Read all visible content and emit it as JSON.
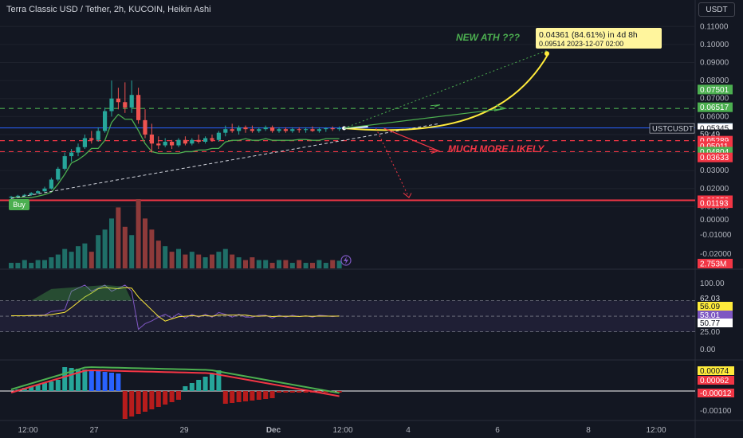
{
  "header": {
    "title": "Terra Classic USD / Tether, 2h, KUCOIN, Heikin Ashi",
    "currency_button": "USDT"
  },
  "colors": {
    "background": "#131722",
    "up": "#26a69a",
    "down": "#ef5350",
    "support_line": "#4caf50",
    "annotation_yellow": "#ffeb3b",
    "annotation_green": "#4caf50",
    "annotation_red": "#f23645",
    "rsi": "#7e57c2"
  },
  "main_pane": {
    "price_scale": [
      "0.11000",
      "0.10000",
      "0.09000",
      "0.08000",
      "0.07000",
      "0.06000",
      "0.05000",
      "0.04000",
      "0.03000",
      "0.02000",
      "0.01000"
    ],
    "price_badges": [
      {
        "value": "0.07501",
        "price": 0.07501,
        "color": "#4caf50",
        "text_color": "#ffffff"
      },
      {
        "value": "0.06517",
        "price": 0.06517,
        "color": "#4caf50",
        "text_color": "#ffffff"
      },
      {
        "value": "0.05378",
        "price": 0.05378,
        "color": "#26a69a",
        "text_color": "#ffffff"
      },
      {
        "value": "0.05360",
        "price": 0.0536,
        "color": "#f23645",
        "text_color": "#ffffff"
      },
      {
        "value": "0.05350",
        "price": 0.0535,
        "color": "#2962ff",
        "text_color": "#ffffff"
      },
      {
        "value": "0.05345",
        "price": 0.05345,
        "color": "#ffffff",
        "text_color": "#131722"
      },
      {
        "value": "59:49",
        "price": 0.0502,
        "color": "#131722",
        "text_color": "#d1d4dc"
      },
      {
        "value": "0.05289",
        "price": 0.0466,
        "color": "#f23645",
        "text_color": "#ffffff"
      },
      {
        "value": "0.05011",
        "price": 0.0436,
        "color": "#f23645",
        "text_color": "#ffffff"
      },
      {
        "value": "0.04804",
        "price": 0.0405,
        "color": "#4caf50",
        "text_color": "#ffffff"
      },
      {
        "value": "0.03633",
        "price": 0.0373,
        "color": "#f23645",
        "text_color": "#ffffff"
      },
      {
        "value": "0.01350",
        "price": 0.0135,
        "color": "#f23645",
        "text_color": "#ffffff"
      },
      {
        "value": "0.01193",
        "price": 0.0119,
        "color": "#f23645",
        "text_color": "#ffffff"
      }
    ],
    "symbol_label": "USTCUSDT",
    "buy_label": "Buy",
    "ath_label": "NEW ATH ???",
    "likely_label": "MUCH MORE LIKELY",
    "measure_box": {
      "line1": "0.04361 (84.61%) in 4d 8h",
      "line2": "0.09514     2023-12-07  02:00"
    }
  },
  "volume_pane": {
    "scale": [
      "0.00000",
      "-0.01000",
      "-0.02000"
    ],
    "badge": "2.753M"
  },
  "rsi_pane": {
    "scale": [
      "100.00",
      "25.00",
      "0.00"
    ],
    "badges": [
      {
        "value": "62.03",
        "color": "#131722",
        "text_color": "#d1d4dc"
      },
      {
        "value": "56.09",
        "color": "#ffeb3b",
        "text_color": "#131722"
      },
      {
        "value": "53.01",
        "color": "#7e57c2",
        "text_color": "#ffffff"
      },
      {
        "value": "50.77",
        "color": "#ffffff",
        "text_color": "#131722"
      }
    ]
  },
  "macd_pane": {
    "badges": [
      {
        "value": "0.00074",
        "color": "#ffeb3b",
        "text_color": "#131722"
      },
      {
        "value": "0.00062",
        "color": "#f23645",
        "text_color": "#ffffff"
      },
      {
        "value": "-0.00012",
        "color": "#f23645",
        "text_color": "#ffffff"
      }
    ],
    "scale": [
      "-0.00100"
    ]
  },
  "time_axis": [
    "12:00",
    "27",
    "29",
    "Dec",
    "12:00",
    "4",
    "6",
    "8",
    "12:00"
  ],
  "chart_data": {
    "type": "candlestick",
    "price_range": [
      0.0,
      0.115
    ],
    "ohlc": [
      [
        0.015,
        0.016,
        0.014,
        0.0155
      ],
      [
        0.0155,
        0.0165,
        0.015,
        0.016
      ],
      [
        0.016,
        0.017,
        0.0155,
        0.0165
      ],
      [
        0.0165,
        0.018,
        0.016,
        0.0175
      ],
      [
        0.0175,
        0.019,
        0.017,
        0.0185
      ],
      [
        0.0185,
        0.021,
        0.018,
        0.02
      ],
      [
        0.02,
        0.026,
        0.0195,
        0.025
      ],
      [
        0.025,
        0.032,
        0.024,
        0.031
      ],
      [
        0.031,
        0.04,
        0.03,
        0.038
      ],
      [
        0.038,
        0.042,
        0.035,
        0.04
      ],
      [
        0.04,
        0.045,
        0.038,
        0.043
      ],
      [
        0.043,
        0.05,
        0.042,
        0.048
      ],
      [
        0.048,
        0.052,
        0.045,
        0.047
      ],
      [
        0.047,
        0.054,
        0.046,
        0.052
      ],
      [
        0.052,
        0.065,
        0.051,
        0.063
      ],
      [
        0.063,
        0.08,
        0.06,
        0.07
      ],
      [
        0.07,
        0.076,
        0.064,
        0.068
      ],
      [
        0.068,
        0.079,
        0.062,
        0.065
      ],
      [
        0.065,
        0.08,
        0.062,
        0.072
      ],
      [
        0.072,
        0.076,
        0.056,
        0.058
      ],
      [
        0.058,
        0.064,
        0.048,
        0.05
      ],
      [
        0.05,
        0.056,
        0.04,
        0.045
      ],
      [
        0.045,
        0.049,
        0.042,
        0.044
      ],
      [
        0.044,
        0.048,
        0.043,
        0.046
      ],
      [
        0.046,
        0.047,
        0.042,
        0.044
      ],
      [
        0.044,
        0.048,
        0.043,
        0.047
      ],
      [
        0.047,
        0.049,
        0.044,
        0.045
      ],
      [
        0.045,
        0.048,
        0.044,
        0.047
      ],
      [
        0.047,
        0.05,
        0.045,
        0.046
      ],
      [
        0.046,
        0.049,
        0.045,
        0.048
      ],
      [
        0.048,
        0.05,
        0.046,
        0.047
      ],
      [
        0.047,
        0.052,
        0.046,
        0.051
      ],
      [
        0.051,
        0.055,
        0.049,
        0.053
      ],
      [
        0.053,
        0.056,
        0.051,
        0.052
      ],
      [
        0.052,
        0.055,
        0.05,
        0.054
      ],
      [
        0.054,
        0.055,
        0.051,
        0.053
      ],
      [
        0.053,
        0.055,
        0.051,
        0.052
      ],
      [
        0.052,
        0.054,
        0.051,
        0.053
      ],
      [
        0.053,
        0.055,
        0.052,
        0.054
      ],
      [
        0.054,
        0.055,
        0.051,
        0.052
      ],
      [
        0.052,
        0.054,
        0.051,
        0.053
      ],
      [
        0.053,
        0.054,
        0.051,
        0.052
      ],
      [
        0.052,
        0.054,
        0.051,
        0.053
      ],
      [
        0.053,
        0.054,
        0.051,
        0.0525
      ],
      [
        0.0525,
        0.054,
        0.051,
        0.053
      ],
      [
        0.053,
        0.0545,
        0.0515,
        0.052
      ],
      [
        0.052,
        0.054,
        0.051,
        0.053
      ],
      [
        0.053,
        0.054,
        0.0515,
        0.0535
      ],
      [
        0.0535,
        0.0545,
        0.052,
        0.053
      ],
      [
        0.053,
        0.0545,
        0.052,
        0.0535
      ]
    ],
    "volume": [
      2,
      2,
      3,
      2,
      3,
      3,
      4,
      5,
      7,
      6,
      8,
      9,
      6,
      12,
      14,
      18,
      22,
      15,
      12,
      25,
      18,
      14,
      10,
      8,
      6,
      7,
      5,
      6,
      5,
      4,
      5,
      6,
      7,
      5,
      4,
      3,
      4,
      3,
      3,
      2,
      3,
      3,
      2,
      3,
      2,
      2,
      3,
      2,
      3,
      2.753
    ],
    "rsi_levels": [
      70,
      50,
      30
    ]
  }
}
